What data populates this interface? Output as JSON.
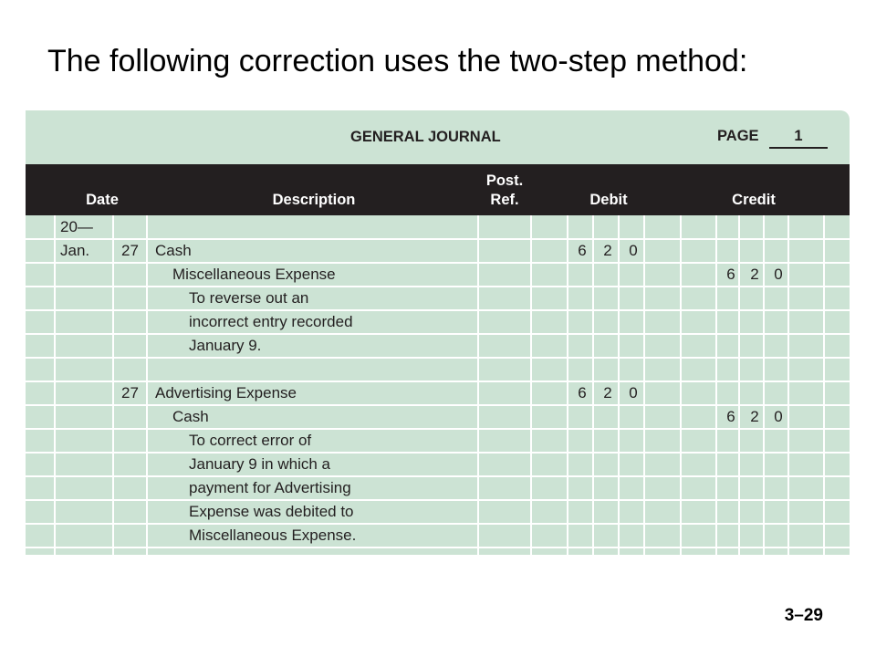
{
  "slide": {
    "title": "The following correction uses the two-step method:",
    "number": "3–29"
  },
  "journal": {
    "title": "GENERAL JOURNAL",
    "page_label": "PAGE",
    "page_number": "1",
    "headers": {
      "date": "Date",
      "description": "Description",
      "post_ref_line1": "Post.",
      "post_ref_line2": "Ref.",
      "debit": "Debit",
      "credit": "Credit"
    },
    "rows": [
      {
        "month": "20—",
        "day": "",
        "description": "",
        "indent": 0,
        "debit": [],
        "credit": []
      },
      {
        "month": "Jan.",
        "day": "27",
        "description": "Cash",
        "indent": 0,
        "debit": [
          "6",
          "2",
          "0"
        ],
        "credit": []
      },
      {
        "month": "",
        "day": "",
        "description": "Miscellaneous Expense",
        "indent": 1,
        "debit": [],
        "credit": [
          "6",
          "2",
          "0"
        ]
      },
      {
        "month": "",
        "day": "",
        "description": "To reverse out an",
        "indent": 2,
        "debit": [],
        "credit": []
      },
      {
        "month": "",
        "day": "",
        "description": "incorrect entry recorded",
        "indent": 2,
        "debit": [],
        "credit": []
      },
      {
        "month": "",
        "day": "",
        "description": "January 9.",
        "indent": 2,
        "debit": [],
        "credit": []
      },
      {
        "month": "",
        "day": "",
        "description": "",
        "indent": 0,
        "debit": [],
        "credit": []
      },
      {
        "month": "",
        "day": "27",
        "description": "Advertising Expense",
        "indent": 0,
        "debit": [
          "6",
          "2",
          "0"
        ],
        "credit": []
      },
      {
        "month": "",
        "day": "",
        "description": "Cash",
        "indent": 1,
        "debit": [],
        "credit": [
          "6",
          "2",
          "0"
        ]
      },
      {
        "month": "",
        "day": "",
        "description": "To correct error of",
        "indent": 2,
        "debit": [],
        "credit": []
      },
      {
        "month": "",
        "day": "",
        "description": "January 9 in which a",
        "indent": 2,
        "debit": [],
        "credit": []
      },
      {
        "month": "",
        "day": "",
        "description": "payment for Advertising",
        "indent": 2,
        "debit": [],
        "credit": []
      },
      {
        "month": "",
        "day": "",
        "description": "Expense was debited to",
        "indent": 2,
        "debit": [],
        "credit": []
      },
      {
        "month": "",
        "day": "",
        "description": "Miscellaneous Expense.",
        "indent": 2,
        "debit": [],
        "credit": []
      }
    ]
  }
}
